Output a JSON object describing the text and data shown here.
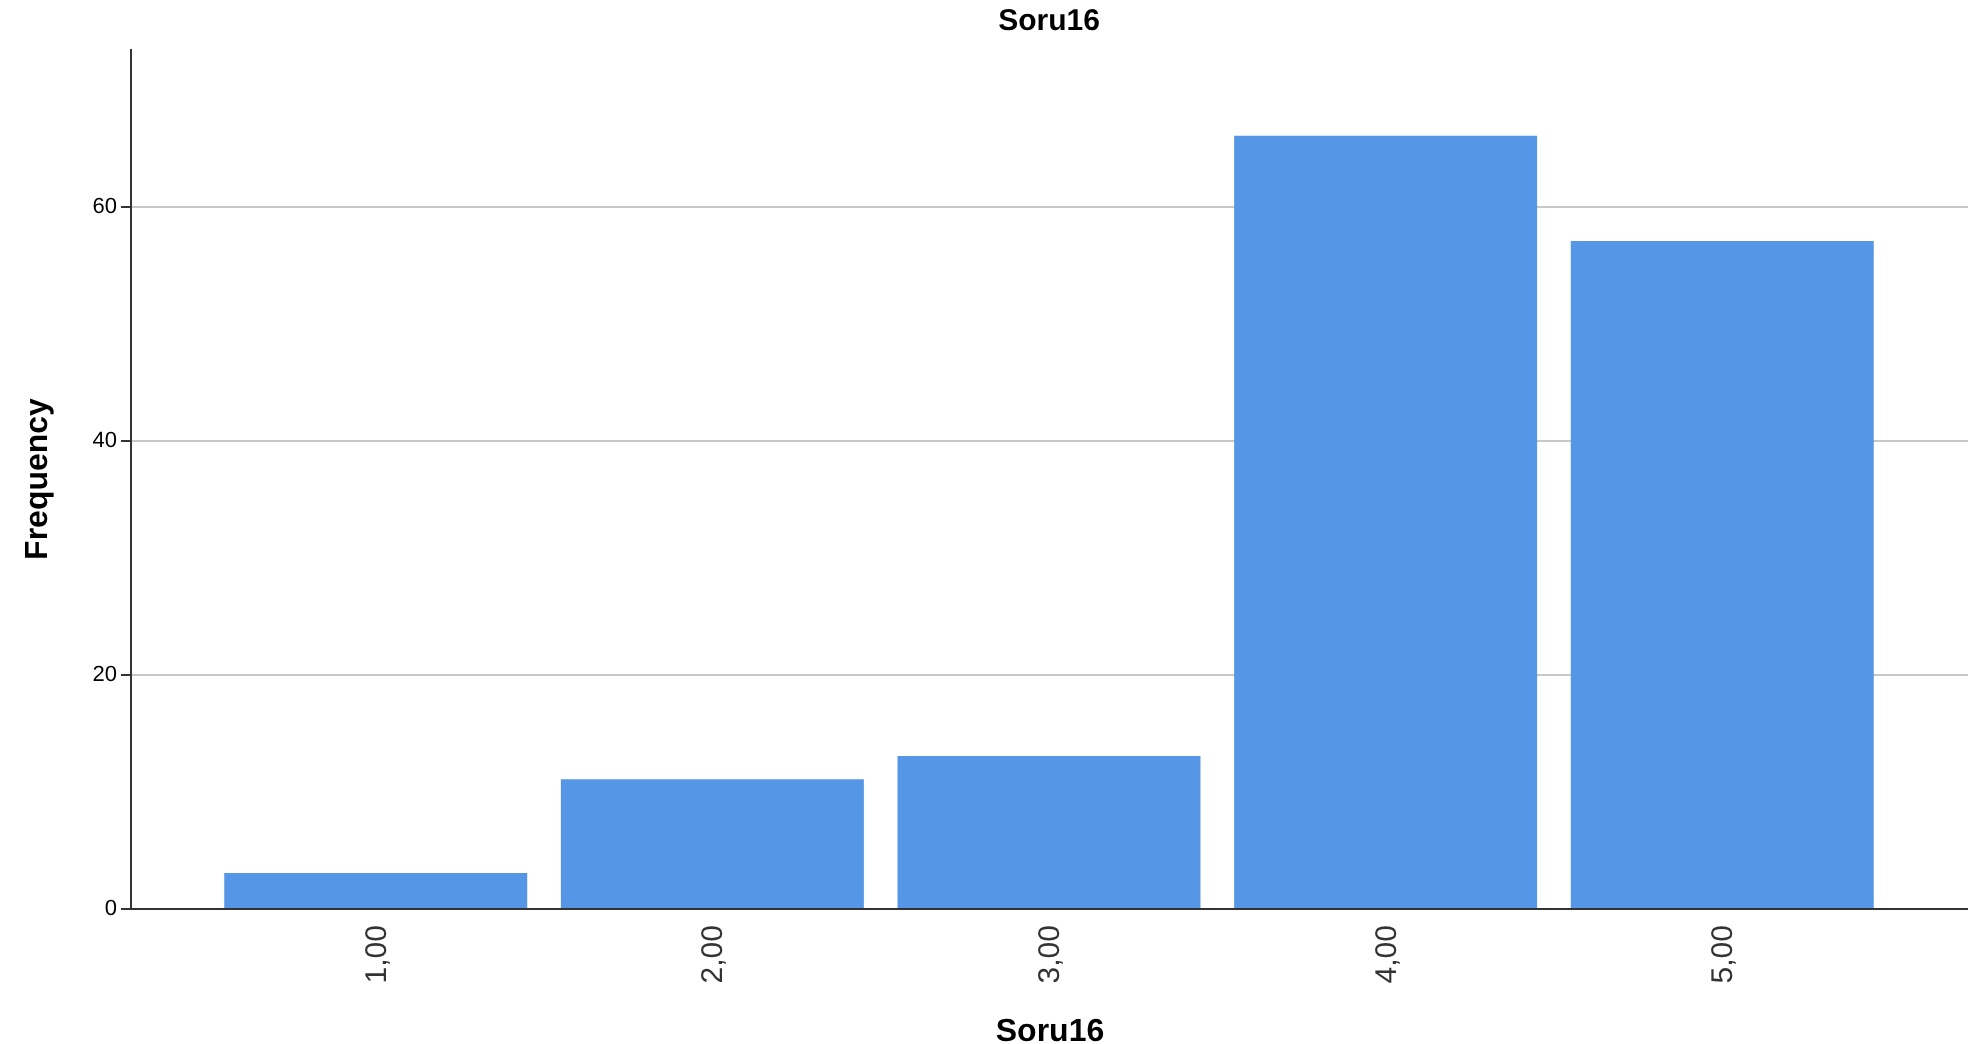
{
  "chart_data": {
    "type": "bar",
    "title": "Soru16",
    "xlabel": "Soru16",
    "ylabel": "Frequency",
    "categories": [
      "1,00",
      "2,00",
      "3,00",
      "4,00",
      "5,00"
    ],
    "values": [
      3,
      11,
      13,
      66,
      57
    ],
    "color": "#5596e6",
    "ylim": [
      0,
      73.5
    ],
    "yticks": [
      0,
      20,
      40,
      60
    ],
    "grid": "y"
  }
}
